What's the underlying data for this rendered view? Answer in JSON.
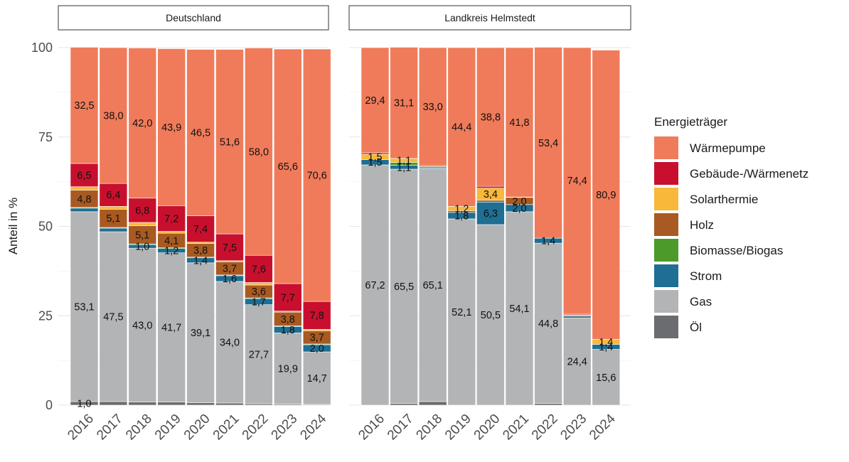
{
  "chart_data": {
    "type": "bar",
    "stacked": true,
    "ylabel": "Anteil in %",
    "ylim": [
      0,
      100
    ],
    "yticks": [
      0,
      25,
      50,
      75,
      100
    ],
    "grid": true,
    "legend": {
      "title": "Energieträger",
      "placement": "right"
    },
    "series": [
      {
        "key": "waermepumpe",
        "name": "Wärmepumpe",
        "color": "#F07B5A"
      },
      {
        "key": "waermenetz",
        "name": "Gebäude-/Wärmenetz",
        "color": "#C8102E"
      },
      {
        "key": "solarthermie",
        "name": "Solarthermie",
        "color": "#F8B83A"
      },
      {
        "key": "holz",
        "name": "Holz",
        "color": "#A85A22"
      },
      {
        "key": "biomasse",
        "name": "Biomasse/Biogas",
        "color": "#4C9A2A"
      },
      {
        "key": "strom",
        "name": "Strom",
        "color": "#1F6E93"
      },
      {
        "key": "gas",
        "name": "Gas",
        "color": "#B3B4B6"
      },
      {
        "key": "oel",
        "name": "Öl",
        "color": "#6B6C6F"
      }
    ],
    "stack_order": [
      "oel",
      "gas",
      "strom",
      "biomasse",
      "holz",
      "solarthermie",
      "waermenetz",
      "waermepumpe"
    ],
    "panels": [
      {
        "title": "Deutschland",
        "categories": [
          "2016",
          "2017",
          "2018",
          "2019",
          "2020",
          "2021",
          "2022",
          "2023",
          "2024"
        ],
        "values": {
          "oel": [
            1.0,
            1.0,
            0.9,
            0.9,
            0.7,
            0.6,
            0.4,
            0.3,
            0.2
          ],
          "gas": [
            53.1,
            47.5,
            43.0,
            41.7,
            39.1,
            34.0,
            27.7,
            19.9,
            14.7
          ],
          "strom": [
            1.0,
            1.0,
            1.0,
            1.2,
            1.4,
            1.6,
            1.7,
            1.8,
            2.0
          ],
          "biomasse": [
            0.2,
            0.2,
            0.2,
            0.2,
            0.2,
            0.2,
            0.2,
            0.2,
            0.2
          ],
          "holz": [
            4.8,
            5.1,
            5.1,
            4.1,
            3.8,
            3.7,
            3.6,
            3.8,
            3.7
          ],
          "solarthermie": [
            1.0,
            0.8,
            0.9,
            0.5,
            0.4,
            0.3,
            0.7,
            0.3,
            0.4
          ],
          "waermenetz": [
            6.5,
            6.4,
            6.8,
            7.2,
            7.4,
            7.5,
            7.6,
            7.7,
            7.8
          ],
          "waermepumpe": [
            32.5,
            38.0,
            42.0,
            43.9,
            46.5,
            51.6,
            58.0,
            65.6,
            70.6
          ]
        },
        "labels": {
          "oel": [
            "1,0",
            "",
            "",
            "",
            "",
            "",
            "",
            "",
            ""
          ],
          "gas": [
            "53,1",
            "47,5",
            "43,0",
            "41,7",
            "39,1",
            "34,0",
            "27,7",
            "19,9",
            "14,7"
          ],
          "strom": [
            "",
            "",
            "1,0",
            "1,2",
            "1,4",
            "1,6",
            "1,7",
            "1,8",
            "2,0"
          ],
          "biomasse": [
            "",
            "",
            "",
            "",
            "",
            "",
            "",
            "",
            ""
          ],
          "holz": [
            "4,8",
            "5,1",
            "5,1",
            "4,1",
            "3,8",
            "3,7",
            "3,6",
            "3,8",
            "3,7"
          ],
          "solarthermie": [
            "",
            "",
            "",
            "",
            "",
            "",
            "",
            "",
            ""
          ],
          "waermenetz": [
            "6,5",
            "6,4",
            "6,8",
            "7,2",
            "7,4",
            "7,5",
            "7,6",
            "7,7",
            "7,8"
          ],
          "waermepumpe": [
            "32,5",
            "38,0",
            "42,0",
            "43,9",
            "46,5",
            "51,6",
            "58,0",
            "65,6",
            "70,6"
          ]
        }
      },
      {
        "title": "Landkreis Helmstedt",
        "categories": [
          "2016",
          "2017",
          "2018",
          "2019",
          "2020",
          "2021",
          "2022",
          "2023",
          "2024"
        ],
        "values": {
          "oel": [
            0.0,
            0.5,
            1.0,
            0.0,
            0.0,
            0.0,
            0.5,
            0.0,
            0.0
          ],
          "gas": [
            67.2,
            65.5,
            65.1,
            52.1,
            50.5,
            54.1,
            44.8,
            24.4,
            15.6
          ],
          "strom": [
            1.5,
            1.1,
            0.3,
            1.8,
            6.3,
            2.0,
            1.4,
            0.5,
            1.4
          ],
          "biomasse": [
            0.0,
            0.8,
            0.3,
            0.0,
            0.0,
            0.0,
            0.0,
            0.0,
            0.0
          ],
          "holz": [
            0.0,
            0.0,
            0.3,
            0.5,
            0.5,
            2.0,
            0.0,
            0.0,
            0.0
          ],
          "solarthermie": [
            1.5,
            1.1,
            0.0,
            1.2,
            3.4,
            0.0,
            0.0,
            0.4,
            1.4
          ],
          "waermenetz": [
            0.4,
            0.0,
            0.0,
            0.0,
            0.5,
            0.1,
            0.0,
            0.3,
            0.0
          ],
          "waermepumpe": [
            29.4,
            31.1,
            33.0,
            44.4,
            38.8,
            41.8,
            53.4,
            74.4,
            80.9
          ]
        },
        "labels": {
          "oel": [
            "",
            "",
            "",
            "",
            "",
            "",
            "",
            "",
            ""
          ],
          "gas": [
            "67,2",
            "65,5",
            "65,1",
            "52,1",
            "50,5",
            "54,1",
            "44,8",
            "24,4",
            "15,6"
          ],
          "strom": [
            "1,5",
            "1,1",
            "",
            "1,8",
            "6,3",
            "2,0",
            "1,4",
            "",
            "1,4"
          ],
          "biomasse": [
            "",
            "",
            "",
            "",
            "",
            "",
            "",
            "",
            ""
          ],
          "holz": [
            "",
            "",
            "",
            "",
            "",
            "2,0",
            "",
            "",
            ""
          ],
          "solarthermie": [
            "1,5",
            "1,1",
            "",
            "1,2",
            "3,4",
            "",
            "",
            "",
            "1,4"
          ],
          "waermenetz": [
            "",
            "",
            "",
            "",
            "",
            "",
            "",
            "",
            ""
          ],
          "waermepumpe": [
            "29,4",
            "31,1",
            "33,0",
            "44,4",
            "38,8",
            "41,8",
            "53,4",
            "74,4",
            "80,9"
          ]
        }
      }
    ]
  }
}
